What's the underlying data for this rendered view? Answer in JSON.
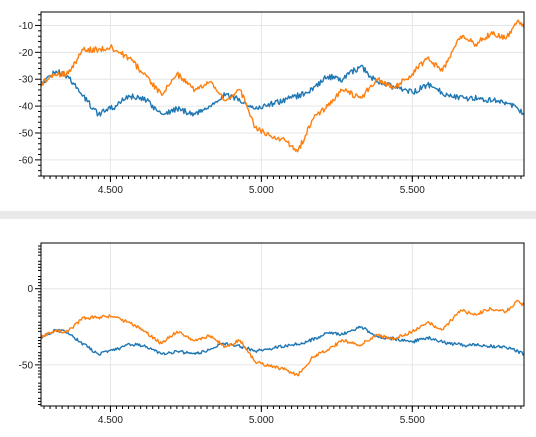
{
  "colors": {
    "background": "#ffffff",
    "separator": "#e9e9e9",
    "grid": "#e6e6e6"
  },
  "chart_data": [
    {
      "type": "line",
      "title": "",
      "xlabel": "",
      "ylabel": "",
      "xlim": [
        4.27,
        5.87
      ],
      "ylim": [
        -66,
        -5
      ],
      "x_ticks": [
        4.5,
        5.0,
        5.5
      ],
      "x_tick_labels": [
        "4.500",
        "5.000",
        "5.500"
      ],
      "y_ticks": [
        -10,
        -20,
        -30,
        -40,
        -50,
        -60
      ],
      "y_tick_labels": [
        "-10",
        "-20",
        "-30",
        "-40",
        "-50",
        "-60"
      ],
      "grid": true,
      "legend": "none",
      "series": [
        {
          "color": "#1f77b4",
          "x": [
            4.27,
            4.32,
            4.36,
            4.4,
            4.46,
            4.52,
            4.56,
            4.62,
            4.67,
            4.72,
            4.78,
            4.83,
            4.87,
            4.92,
            4.98,
            5.04,
            5.1,
            5.15,
            5.22,
            5.27,
            5.33,
            5.38,
            5.44,
            5.5,
            5.55,
            5.62,
            5.67,
            5.72,
            5.78,
            5.82,
            5.87
          ],
          "values": [
            -32,
            -27,
            -29,
            -35,
            -43,
            -40,
            -36,
            -38,
            -43,
            -41,
            -43,
            -40,
            -36,
            -37,
            -41,
            -39,
            -37,
            -35,
            -29,
            -30,
            -25,
            -31,
            -33,
            -35,
            -32,
            -36,
            -37,
            -37,
            -38,
            -39,
            -43
          ]
        },
        {
          "color": "#ff7f0e",
          "x": [
            4.27,
            4.31,
            4.36,
            4.41,
            4.46,
            4.5,
            4.56,
            4.62,
            4.67,
            4.72,
            4.78,
            4.83,
            4.88,
            4.93,
            4.98,
            5.03,
            5.08,
            5.12,
            5.17,
            5.22,
            5.27,
            5.33,
            5.38,
            5.44,
            5.5,
            5.55,
            5.6,
            5.66,
            5.71,
            5.76,
            5.81,
            5.85,
            5.87
          ],
          "values": [
            -32,
            -28,
            -28,
            -19,
            -19,
            -18,
            -22,
            -29,
            -36,
            -28,
            -34,
            -31,
            -38,
            -34,
            -48,
            -51,
            -53,
            -57,
            -45,
            -40,
            -34,
            -37,
            -30,
            -33,
            -28,
            -22,
            -27,
            -14,
            -17,
            -13,
            -15,
            -8,
            -11
          ]
        }
      ]
    },
    {
      "type": "line",
      "title": "",
      "xlabel": "",
      "ylabel": "",
      "xlim": [
        4.27,
        5.87
      ],
      "ylim": [
        -77,
        30
      ],
      "x_ticks": [
        4.5,
        5.0,
        5.5
      ],
      "x_tick_labels": [
        "4.500",
        "5.000",
        "5.500"
      ],
      "y_ticks": [
        0,
        -50
      ],
      "y_tick_labels": [
        "0",
        "-50"
      ],
      "grid": true,
      "legend": "none",
      "series": [
        {
          "color": "#1f77b4",
          "x": [
            4.27,
            4.32,
            4.36,
            4.4,
            4.46,
            4.52,
            4.56,
            4.62,
            4.67,
            4.72,
            4.78,
            4.83,
            4.87,
            4.92,
            4.98,
            5.04,
            5.1,
            5.15,
            5.22,
            5.27,
            5.33,
            5.38,
            5.44,
            5.5,
            5.55,
            5.62,
            5.67,
            5.72,
            5.78,
            5.82,
            5.87
          ],
          "values": [
            -32,
            -27,
            -29,
            -35,
            -43,
            -40,
            -36,
            -38,
            -43,
            -41,
            -43,
            -40,
            -36,
            -37,
            -41,
            -39,
            -37,
            -35,
            -29,
            -30,
            -25,
            -31,
            -33,
            -35,
            -32,
            -36,
            -37,
            -37,
            -38,
            -39,
            -43
          ]
        },
        {
          "color": "#ff7f0e",
          "x": [
            4.27,
            4.31,
            4.36,
            4.41,
            4.46,
            4.5,
            4.56,
            4.62,
            4.67,
            4.72,
            4.78,
            4.83,
            4.88,
            4.93,
            4.98,
            5.03,
            5.08,
            5.12,
            5.17,
            5.22,
            5.27,
            5.33,
            5.38,
            5.44,
            5.5,
            5.55,
            5.6,
            5.66,
            5.71,
            5.76,
            5.81,
            5.85,
            5.87
          ],
          "values": [
            -32,
            -28,
            -28,
            -19,
            -19,
            -18,
            -22,
            -29,
            -36,
            -28,
            -34,
            -31,
            -38,
            -34,
            -48,
            -51,
            -53,
            -57,
            -45,
            -40,
            -34,
            -37,
            -30,
            -33,
            -28,
            -22,
            -27,
            -14,
            -17,
            -13,
            -15,
            -8,
            -11
          ]
        }
      ]
    }
  ]
}
